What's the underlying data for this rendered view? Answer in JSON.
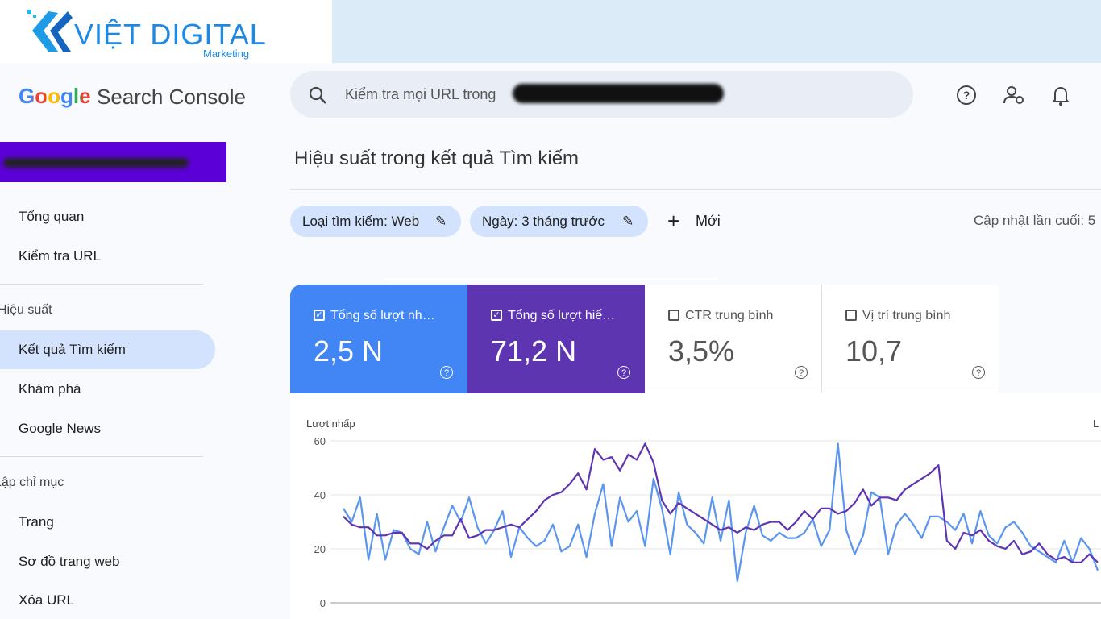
{
  "logo": {
    "brand": "VIỆT DIGITAL",
    "tagline": "Marketing"
  },
  "header": {
    "product_google": "Google",
    "product_name": "Search Console",
    "search_placeholder": "Kiểm tra mọi URL trong"
  },
  "sidebar": {
    "items": [
      "Tổng quan",
      "Kiểm tra URL"
    ],
    "sections": [
      {
        "title": "Hiệu suất",
        "items": [
          "Kết quả Tìm kiếm",
          "Khám phá",
          "Google News"
        ],
        "selected": 0
      },
      {
        "title": "Lập chỉ mục",
        "items": [
          "Trang",
          "Sơ đồ trang web",
          "Xóa URL"
        ]
      }
    ]
  },
  "main": {
    "title": "Hiệu suất trong kết quả Tìm kiếm",
    "filters": [
      "Loại tìm kiếm: Web",
      "Ngày: 3 tháng trước"
    ],
    "new_button": "Mới",
    "last_updated": "Cập nhật lần cuối: 5",
    "metrics": [
      {
        "label": "Tổng số lượt nh…",
        "value": "2,5 N",
        "checked": true,
        "color": "#4285f4"
      },
      {
        "label": "Tổng số lượt hiể…",
        "value": "71,2 N",
        "checked": true,
        "color": "#5e35b1"
      },
      {
        "label": "CTR trung bình",
        "value": "3,5%",
        "checked": false
      },
      {
        "label": "Vị trí trung bình",
        "value": "10,7",
        "checked": false
      }
    ]
  },
  "chart_data": {
    "type": "line",
    "y_label": "Lượt nhấp",
    "y2_label": "L",
    "ylim": [
      0,
      60
    ],
    "yticks": [
      0,
      20,
      40,
      60
    ],
    "y2lim": [
      0,
      1500
    ],
    "grid": true,
    "series": [
      {
        "color": "#5a95ee",
        "values": [
          35,
          30,
          39,
          16,
          33,
          16,
          27,
          26,
          20,
          18,
          30,
          19,
          28,
          36,
          30,
          39,
          28,
          22,
          27,
          34,
          17,
          28,
          24,
          21,
          23,
          29,
          19,
          21,
          29,
          17,
          33,
          44,
          21,
          39,
          30,
          34,
          21,
          46,
          35,
          18,
          41,
          29,
          26,
          22,
          39,
          23,
          38,
          8,
          26,
          36,
          25,
          23,
          26,
          24,
          24,
          26,
          31,
          21,
          27,
          59,
          27,
          18,
          25,
          41,
          39,
          18,
          29,
          33,
          29,
          24,
          32,
          32,
          30,
          27,
          33,
          22,
          34,
          25,
          22,
          28,
          30,
          26,
          21,
          19,
          17,
          15,
          23,
          15,
          24,
          20,
          12
        ]
      },
      {
        "color": "#5e35b1",
        "axis": "y2",
        "values": [
          800,
          725,
          700,
          700,
          625,
          625,
          650,
          650,
          550,
          550,
          500,
          575,
          625,
          625,
          775,
          600,
          625,
          675,
          675,
          700,
          725,
          700,
          775,
          850,
          950,
          1000,
          1025,
          1100,
          1200,
          1050,
          1425,
          1325,
          1350,
          1225,
          1375,
          1325,
          1475,
          1300,
          950,
          825,
          925,
          875,
          825,
          775,
          725,
          675,
          700,
          650,
          700,
          675,
          725,
          750,
          750,
          675,
          750,
          850,
          775,
          875,
          875,
          825,
          850,
          925,
          1050,
          900,
          975,
          975,
          950,
          1050,
          1100,
          1150,
          1200,
          1275,
          575,
          500,
          650,
          625,
          675,
          575,
          525,
          500,
          575,
          450,
          475,
          550,
          450,
          400,
          425,
          375,
          375,
          450,
          375
        ]
      }
    ]
  }
}
